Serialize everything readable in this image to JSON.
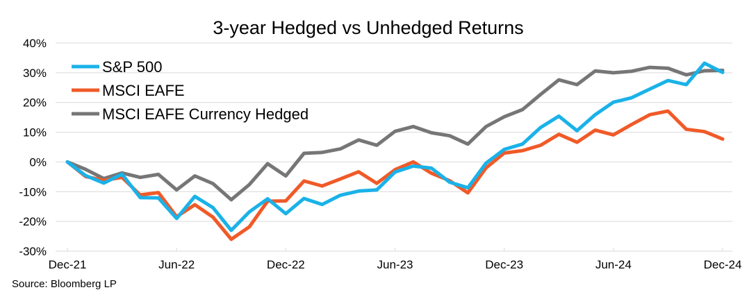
{
  "chart_data": {
    "type": "line",
    "title": "3-year Hedged vs Unhedged Returns",
    "xlabel": "",
    "ylabel": "",
    "ylim": [
      -30,
      40
    ],
    "yticks": [
      40,
      30,
      20,
      10,
      0,
      -10,
      -20,
      -30
    ],
    "ytick_labels": [
      "40%",
      "30%",
      "20%",
      "10%",
      "0%",
      "-10%",
      "-20%",
      "-30%"
    ],
    "x_range": [
      0,
      36
    ],
    "xticks": [
      0,
      6,
      12,
      18,
      24,
      30,
      36
    ],
    "xtick_labels": [
      "Dec-21",
      "Jun-22",
      "Dec-22",
      "Jun-23",
      "Dec-23",
      "Jun-24",
      "Dec-24"
    ],
    "grid": true,
    "legend_position": "top-left",
    "source": "Source: Bloomberg LP",
    "series": [
      {
        "name": "S&P 500",
        "color": "#1ab2e8",
        "x": [
          0,
          1,
          2,
          3,
          4,
          5,
          6,
          7,
          8,
          9,
          10,
          11,
          12,
          13,
          14,
          15,
          16,
          17,
          18,
          19,
          20,
          21,
          22,
          23,
          24,
          25,
          26,
          27,
          28,
          29,
          30,
          31,
          32,
          33,
          34,
          35,
          36
        ],
        "values": [
          0,
          -4.6,
          -7.1,
          -4.1,
          -12,
          -12.1,
          -19,
          -11.6,
          -15.4,
          -23,
          -16.8,
          -12.4,
          -17.4,
          -12.3,
          -14.3,
          -11.2,
          -9.8,
          -9.4,
          -3.4,
          -1.4,
          -2.1,
          -6.8,
          -8.7,
          -0.4,
          4.2,
          6,
          11.6,
          15.4,
          10.5,
          15.9,
          20.1,
          21.6,
          24.5,
          27.4,
          26,
          33.2,
          30.1
        ]
      },
      {
        "name": "MSCI EAFE",
        "color": "#f05a28",
        "x": [
          0,
          1,
          2,
          3,
          4,
          5,
          6,
          7,
          8,
          9,
          10,
          11,
          12,
          13,
          14,
          15,
          16,
          17,
          18,
          19,
          20,
          21,
          22,
          23,
          24,
          25,
          26,
          27,
          28,
          29,
          30,
          31,
          32,
          33,
          34,
          35,
          36
        ],
        "values": [
          0,
          -4.9,
          -6.2,
          -5.2,
          -11.1,
          -10.3,
          -18.4,
          -14.4,
          -18.6,
          -26,
          -21.8,
          -13.2,
          -13.1,
          -6.4,
          -8.1,
          -5.7,
          -3.3,
          -7.2,
          -2.6,
          0,
          -3.8,
          -6.3,
          -10.4,
          -2,
          3,
          3.8,
          5.6,
          9.3,
          6.6,
          10.7,
          9.1,
          12.6,
          15.9,
          17.1,
          11,
          10.2,
          7.7
        ]
      },
      {
        "name": "MSCI EAFE Currency Hedged",
        "color": "#767676",
        "x": [
          0,
          1,
          2,
          3,
          4,
          5,
          6,
          7,
          8,
          9,
          10,
          11,
          12,
          13,
          14,
          15,
          16,
          17,
          18,
          19,
          20,
          21,
          22,
          23,
          24,
          25,
          26,
          27,
          28,
          29,
          30,
          31,
          32,
          33,
          34,
          35,
          36
        ],
        "values": [
          0,
          -2.5,
          -5.6,
          -3.7,
          -5.2,
          -4.2,
          -9.4,
          -4.7,
          -7.3,
          -12.7,
          -7.6,
          -0.6,
          -4.7,
          2.9,
          3.2,
          4.4,
          7.4,
          5.6,
          10.3,
          11.9,
          9.8,
          8.8,
          6,
          11.9,
          15.2,
          17.6,
          22.7,
          27.6,
          26,
          30.6,
          30,
          30.5,
          31.8,
          31.5,
          29.3,
          30.7,
          30.8
        ]
      }
    ]
  }
}
